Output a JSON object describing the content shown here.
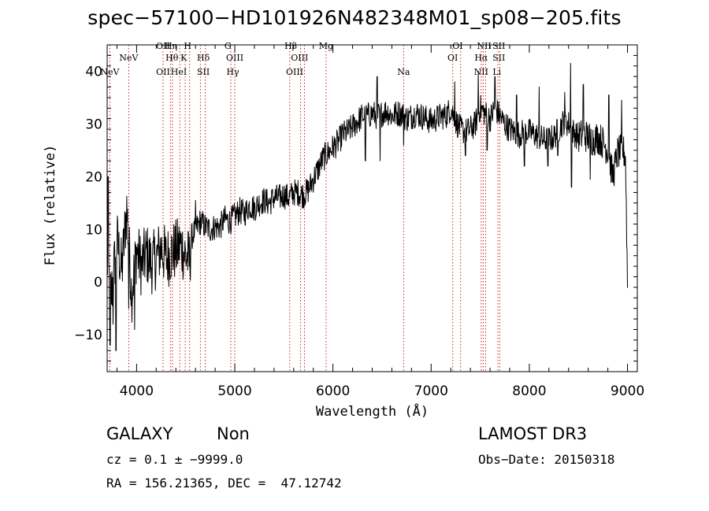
{
  "title": "spec−57100−HD101926N482348M01_sp08−205.fits",
  "info": {
    "class_label": "GALAXY",
    "subclass_label": "Non",
    "survey": "LAMOST DR3",
    "cz": "cz = 0.1 ± −9999.0",
    "obs_date": "Obs−Date: 20150318",
    "coords": "RA = 156.21365, DEC =  47.12742"
  },
  "chart_data": {
    "type": "line",
    "xlabel": "Wavelength (Å)",
    "ylabel": "Flux (relative)",
    "xlim": [
      3700,
      9100
    ],
    "ylim": [
      -17,
      45
    ],
    "xticks": [
      4000,
      5000,
      6000,
      7000,
      8000,
      9000
    ],
    "yticks": [
      -10,
      0,
      10,
      20,
      30,
      40
    ],
    "line_color": "#000000",
    "marker_color": "#cc2222",
    "line_markers": [
      {
        "name": "NeV",
        "wave": 3727,
        "row": 3
      },
      {
        "name": "NeV",
        "wave": 3920,
        "row": 2
      },
      {
        "name": "OII",
        "wave": 4270,
        "row": 1
      },
      {
        "name": "OII",
        "wave": 4270,
        "row": 3
      },
      {
        "name": "Hη",
        "wave": 4350,
        "row": 1
      },
      {
        "name": "Hθ",
        "wave": 4360,
        "row": 2
      },
      {
        "name": "HeI",
        "wave": 4430,
        "row": 3
      },
      {
        "name": "H",
        "wave": 4520,
        "row": 1
      },
      {
        "name": "K",
        "wave": 4480,
        "row": 2
      },
      {
        "name": "Hδ",
        "wave": 4680,
        "row": 2
      },
      {
        "name": "SII",
        "wave": 4680,
        "row": 3
      },
      {
        "name": "G",
        "wave": 4930,
        "row": 1
      },
      {
        "name": "OIII",
        "wave": 5000,
        "row": 2
      },
      {
        "name": "Hγ",
        "wave": 4980,
        "row": 3
      },
      {
        "name": "Hβ",
        "wave": 5570,
        "row": 1
      },
      {
        "name": "OIII",
        "wave": 5660,
        "row": 2
      },
      {
        "name": "OIII",
        "wave": 5610,
        "row": 3
      },
      {
        "name": "Mg",
        "wave": 5930,
        "row": 1
      },
      {
        "name": "Na",
        "wave": 6720,
        "row": 3
      },
      {
        "name": "OI",
        "wave": 7270,
        "row": 1
      },
      {
        "name": "OI",
        "wave": 7220,
        "row": 2
      },
      {
        "name": "NII",
        "wave": 7540,
        "row": 1
      },
      {
        "name": "Hα",
        "wave": 7510,
        "row": 2
      },
      {
        "name": "NII",
        "wave": 7510,
        "row": 3
      },
      {
        "name": "SII",
        "wave": 7690,
        "row": 1
      },
      {
        "name": "SII",
        "wave": 7690,
        "row": 2
      },
      {
        "name": "Li",
        "wave": 7670,
        "row": 3
      }
    ],
    "marker_waves": [
      3727,
      3920,
      4270,
      4345,
      4365,
      4440,
      4495,
      4540,
      4650,
      4700,
      4960,
      5000,
      5560,
      5670,
      5710,
      5930,
      6720,
      7220,
      7300,
      7510,
      7530,
      7555,
      7680,
      7700
    ],
    "series": [
      {
        "anchors": [
          [
            3700,
            4.5
          ],
          [
            3740,
            -3.0
          ],
          [
            3800,
            8.0
          ],
          [
            3850,
            2.0
          ],
          [
            3900,
            14.0
          ],
          [
            3950,
            -2.0
          ],
          [
            4000,
            6.0
          ],
          [
            4050,
            3.0
          ],
          [
            4100,
            5.5
          ],
          [
            4150,
            3.5
          ],
          [
            4200,
            4.5
          ],
          [
            4250,
            6.5
          ],
          [
            4300,
            4.5
          ],
          [
            4350,
            5.5
          ],
          [
            4400,
            6.0
          ],
          [
            4450,
            7.0
          ],
          [
            4500,
            5.0
          ],
          [
            4540,
            4.0
          ],
          [
            4560,
            8.5
          ],
          [
            4600,
            10.0
          ],
          [
            4650,
            11.5
          ],
          [
            4700,
            10.5
          ],
          [
            4750,
            10.0
          ],
          [
            4800,
            10.5
          ],
          [
            4850,
            10.5
          ],
          [
            4900,
            12.0
          ],
          [
            4950,
            11.5
          ],
          [
            5000,
            12.5
          ],
          [
            5050,
            13.5
          ],
          [
            5100,
            13.0
          ],
          [
            5150,
            14.5
          ],
          [
            5200,
            14.0
          ],
          [
            5250,
            15.0
          ],
          [
            5300,
            15.5
          ],
          [
            5350,
            15.0
          ],
          [
            5400,
            16.0
          ],
          [
            5450,
            16.0
          ],
          [
            5500,
            16.5
          ],
          [
            5550,
            16.0
          ],
          [
            5600,
            17.0
          ],
          [
            5650,
            17.0
          ],
          [
            5700,
            16.5
          ],
          [
            5750,
            17.5
          ],
          [
            5800,
            19.5
          ],
          [
            5850,
            21.5
          ],
          [
            5900,
            23.5
          ],
          [
            5950,
            24.5
          ],
          [
            6000,
            25.5
          ],
          [
            6050,
            26.5
          ],
          [
            6100,
            28.0
          ],
          [
            6150,
            28.5
          ],
          [
            6200,
            29.5
          ],
          [
            6250,
            30.5
          ],
          [
            6300,
            31.5
          ],
          [
            6350,
            31.5
          ],
          [
            6400,
            32.0
          ],
          [
            6450,
            31.5
          ],
          [
            6500,
            32.0
          ],
          [
            6550,
            32.5
          ],
          [
            6600,
            31.5
          ],
          [
            6650,
            32.0
          ],
          [
            6700,
            32.0
          ],
          [
            6750,
            31.0
          ],
          [
            6800,
            31.5
          ],
          [
            6850,
            32.0
          ],
          [
            6900,
            31.5
          ],
          [
            6950,
            31.0
          ],
          [
            7000,
            30.5
          ],
          [
            7050,
            31.0
          ],
          [
            7100,
            31.5
          ],
          [
            7150,
            31.5
          ],
          [
            7200,
            33.0
          ],
          [
            7250,
            30.5
          ],
          [
            7300,
            29.0
          ],
          [
            7350,
            28.5
          ],
          [
            7400,
            29.0
          ],
          [
            7450,
            30.0
          ],
          [
            7500,
            33.0
          ],
          [
            7550,
            32.0
          ],
          [
            7600,
            31.0
          ],
          [
            7650,
            33.0
          ],
          [
            7700,
            31.5
          ],
          [
            7750,
            30.0
          ],
          [
            7800,
            29.0
          ],
          [
            7850,
            28.5
          ],
          [
            7900,
            28.0
          ],
          [
            7950,
            28.5
          ],
          [
            8000,
            28.5
          ],
          [
            8050,
            28.0
          ],
          [
            8100,
            27.5
          ],
          [
            8150,
            27.0
          ],
          [
            8200,
            27.0
          ],
          [
            8250,
            27.5
          ],
          [
            8300,
            29.0
          ],
          [
            8350,
            30.5
          ],
          [
            8400,
            30.0
          ],
          [
            8450,
            28.5
          ],
          [
            8500,
            27.5
          ],
          [
            8550,
            28.0
          ],
          [
            8600,
            27.5
          ],
          [
            8650,
            27.0
          ],
          [
            8700,
            27.5
          ],
          [
            8750,
            26.5
          ],
          [
            8800,
            25.0
          ],
          [
            8850,
            20.0
          ],
          [
            8900,
            24.5
          ],
          [
            8950,
            25.0
          ],
          [
            8980,
            24.0
          ],
          [
            9000,
            0.0
          ]
        ],
        "spikes": [
          [
            3710,
            20.0
          ],
          [
            3730,
            -12.0
          ],
          [
            3760,
            -8.0
          ],
          [
            3790,
            -13.0
          ],
          [
            3860,
            6.0
          ],
          [
            3920,
            -5.0
          ],
          [
            3980,
            -9.0
          ],
          [
            4600,
            15.5
          ],
          [
            6330,
            23.0
          ],
          [
            6450,
            39.0
          ],
          [
            6480,
            23.0
          ],
          [
            6720,
            26.0
          ],
          [
            7240,
            38.0
          ],
          [
            7350,
            24.0
          ],
          [
            7480,
            40.0
          ],
          [
            7570,
            25.0
          ],
          [
            7650,
            39.0
          ],
          [
            7870,
            35.5
          ],
          [
            7950,
            22.0
          ],
          [
            8100,
            37.0
          ],
          [
            8190,
            22.0
          ],
          [
            8290,
            24.0
          ],
          [
            8360,
            36.0
          ],
          [
            8420,
            41.5
          ],
          [
            8430,
            18.0
          ],
          [
            8550,
            37.5
          ],
          [
            8620,
            19.5
          ],
          [
            8810,
            35.5
          ],
          [
            8860,
            19.0
          ],
          [
            8940,
            34.5
          ]
        ]
      }
    ]
  }
}
